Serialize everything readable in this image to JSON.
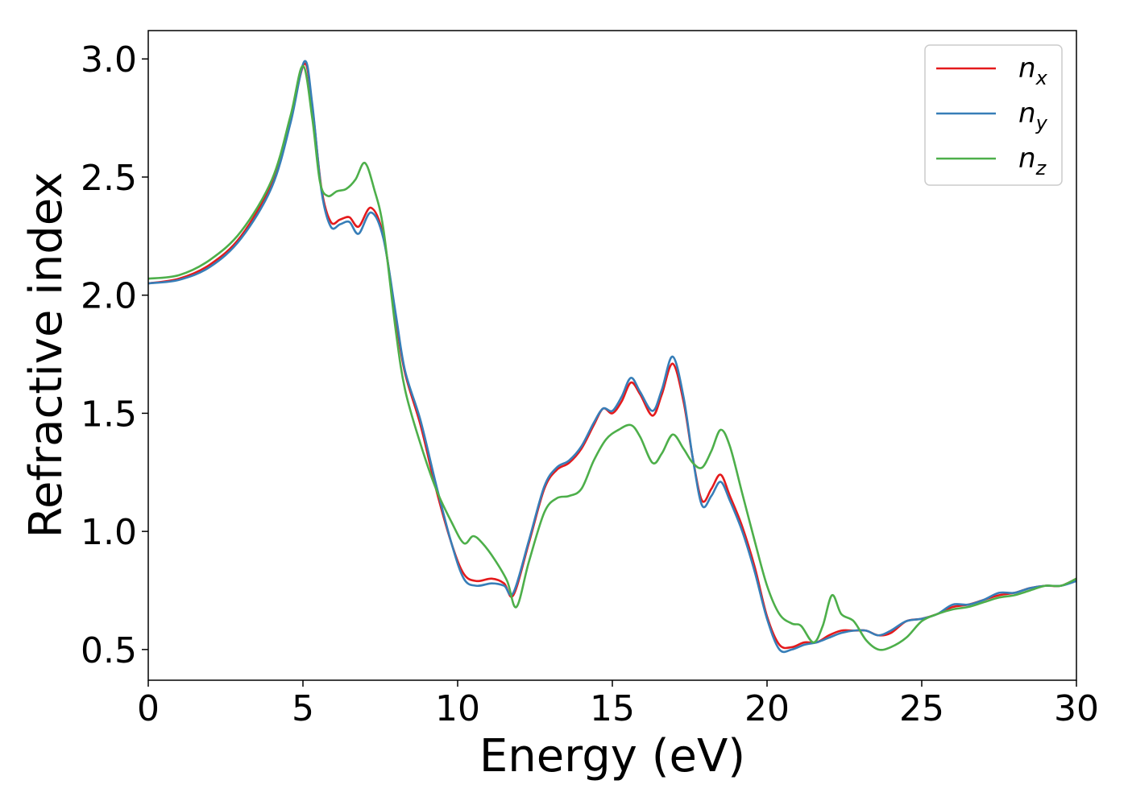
{
  "chart_data": {
    "type": "line",
    "title": "",
    "xlabel": "Energy (eV)",
    "ylabel": "Refractive index",
    "xlim": [
      0,
      30
    ],
    "ylim": [
      0.37,
      3.12
    ],
    "xticks": [
      0,
      5,
      10,
      15,
      20,
      25,
      30
    ],
    "xtick_labels": [
      "0",
      "5",
      "10",
      "15",
      "20",
      "25",
      "30"
    ],
    "yticks": [
      0.5,
      1.0,
      1.5,
      2.0,
      2.5,
      3.0
    ],
    "ytick_labels": [
      "0.5",
      "1.0",
      "1.5",
      "2.0",
      "2.5",
      "3.0"
    ],
    "grid": false,
    "legend_position": "top-right",
    "series": [
      {
        "name": "n_x",
        "label_main": "n",
        "label_sub": "x",
        "color": "#e41a1c",
        "points": [
          [
            0,
            2.05
          ],
          [
            1,
            2.07
          ],
          [
            2,
            2.13
          ],
          [
            3,
            2.25
          ],
          [
            4,
            2.48
          ],
          [
            4.6,
            2.75
          ],
          [
            5.05,
            2.98
          ],
          [
            5.3,
            2.8
          ],
          [
            5.6,
            2.45
          ],
          [
            5.9,
            2.31
          ],
          [
            6.2,
            2.32
          ],
          [
            6.5,
            2.33
          ],
          [
            6.8,
            2.29
          ],
          [
            7.2,
            2.37
          ],
          [
            7.6,
            2.25
          ],
          [
            8.0,
            1.9
          ],
          [
            8.3,
            1.67
          ],
          [
            8.8,
            1.45
          ],
          [
            9.3,
            1.18
          ],
          [
            9.8,
            0.95
          ],
          [
            10.2,
            0.82
          ],
          [
            10.6,
            0.79
          ],
          [
            11.1,
            0.8
          ],
          [
            11.5,
            0.78
          ],
          [
            11.8,
            0.73
          ],
          [
            12.3,
            0.95
          ],
          [
            12.8,
            1.18
          ],
          [
            13.2,
            1.26
          ],
          [
            13.6,
            1.29
          ],
          [
            14.0,
            1.35
          ],
          [
            14.4,
            1.45
          ],
          [
            14.7,
            1.52
          ],
          [
            15.0,
            1.5
          ],
          [
            15.3,
            1.55
          ],
          [
            15.6,
            1.63
          ],
          [
            15.9,
            1.58
          ],
          [
            16.3,
            1.49
          ],
          [
            16.6,
            1.58
          ],
          [
            16.95,
            1.71
          ],
          [
            17.3,
            1.55
          ],
          [
            17.6,
            1.31
          ],
          [
            17.9,
            1.13
          ],
          [
            18.2,
            1.18
          ],
          [
            18.5,
            1.24
          ],
          [
            18.8,
            1.15
          ],
          [
            19.2,
            1.02
          ],
          [
            19.6,
            0.85
          ],
          [
            20.0,
            0.64
          ],
          [
            20.4,
            0.52
          ],
          [
            20.8,
            0.51
          ],
          [
            21.2,
            0.53
          ],
          [
            21.6,
            0.53
          ],
          [
            22.0,
            0.56
          ],
          [
            22.4,
            0.58
          ],
          [
            22.8,
            0.58
          ],
          [
            23.2,
            0.58
          ],
          [
            23.6,
            0.56
          ],
          [
            24.0,
            0.57
          ],
          [
            24.5,
            0.62
          ],
          [
            25.0,
            0.63
          ],
          [
            25.5,
            0.65
          ],
          [
            26.0,
            0.68
          ],
          [
            26.5,
            0.69
          ],
          [
            27.0,
            0.71
          ],
          [
            27.5,
            0.73
          ],
          [
            28.0,
            0.74
          ],
          [
            28.5,
            0.76
          ],
          [
            29.0,
            0.77
          ],
          [
            29.5,
            0.77
          ],
          [
            30.0,
            0.8
          ]
        ]
      },
      {
        "name": "n_y",
        "label_main": "n",
        "label_sub": "y",
        "color": "#377eb8",
        "points": [
          [
            0,
            2.05
          ],
          [
            1,
            2.065
          ],
          [
            2,
            2.12
          ],
          [
            3,
            2.24
          ],
          [
            4,
            2.46
          ],
          [
            4.6,
            2.73
          ],
          [
            5.05,
            2.99
          ],
          [
            5.3,
            2.81
          ],
          [
            5.6,
            2.44
          ],
          [
            5.9,
            2.29
          ],
          [
            6.2,
            2.3
          ],
          [
            6.5,
            2.31
          ],
          [
            6.8,
            2.26
          ],
          [
            7.2,
            2.35
          ],
          [
            7.6,
            2.24
          ],
          [
            8.0,
            1.92
          ],
          [
            8.3,
            1.68
          ],
          [
            8.8,
            1.47
          ],
          [
            9.3,
            1.2
          ],
          [
            9.8,
            0.95
          ],
          [
            10.2,
            0.8
          ],
          [
            10.6,
            0.77
          ],
          [
            11.1,
            0.78
          ],
          [
            11.5,
            0.77
          ],
          [
            11.8,
            0.74
          ],
          [
            12.3,
            0.96
          ],
          [
            12.8,
            1.19
          ],
          [
            13.2,
            1.27
          ],
          [
            13.6,
            1.3
          ],
          [
            14.0,
            1.36
          ],
          [
            14.4,
            1.46
          ],
          [
            14.7,
            1.52
          ],
          [
            15.0,
            1.51
          ],
          [
            15.3,
            1.57
          ],
          [
            15.6,
            1.65
          ],
          [
            15.9,
            1.59
          ],
          [
            16.3,
            1.51
          ],
          [
            16.6,
            1.6
          ],
          [
            16.95,
            1.74
          ],
          [
            17.3,
            1.57
          ],
          [
            17.6,
            1.31
          ],
          [
            17.9,
            1.11
          ],
          [
            18.2,
            1.15
          ],
          [
            18.5,
            1.21
          ],
          [
            18.8,
            1.13
          ],
          [
            19.2,
            1.0
          ],
          [
            19.6,
            0.83
          ],
          [
            20.0,
            0.63
          ],
          [
            20.4,
            0.5
          ],
          [
            20.8,
            0.5
          ],
          [
            21.2,
            0.52
          ],
          [
            21.6,
            0.53
          ],
          [
            22.0,
            0.55
          ],
          [
            22.4,
            0.57
          ],
          [
            22.8,
            0.58
          ],
          [
            23.2,
            0.58
          ],
          [
            23.6,
            0.56
          ],
          [
            24.0,
            0.58
          ],
          [
            24.5,
            0.62
          ],
          [
            25.0,
            0.63
          ],
          [
            25.5,
            0.65
          ],
          [
            26.0,
            0.69
          ],
          [
            26.5,
            0.69
          ],
          [
            27.0,
            0.71
          ],
          [
            27.5,
            0.74
          ],
          [
            28.0,
            0.74
          ],
          [
            28.5,
            0.76
          ],
          [
            29.0,
            0.77
          ],
          [
            29.5,
            0.77
          ],
          [
            30.0,
            0.79
          ]
        ]
      },
      {
        "name": "n_z",
        "label_main": "n",
        "label_sub": "z",
        "color": "#4daf4a",
        "points": [
          [
            0,
            2.07
          ],
          [
            1,
            2.085
          ],
          [
            2,
            2.15
          ],
          [
            3,
            2.27
          ],
          [
            4,
            2.49
          ],
          [
            4.6,
            2.76
          ],
          [
            5.0,
            2.97
          ],
          [
            5.3,
            2.75
          ],
          [
            5.55,
            2.48
          ],
          [
            5.8,
            2.42
          ],
          [
            6.1,
            2.44
          ],
          [
            6.4,
            2.45
          ],
          [
            6.7,
            2.49
          ],
          [
            7.0,
            2.56
          ],
          [
            7.3,
            2.45
          ],
          [
            7.6,
            2.28
          ],
          [
            8.0,
            1.85
          ],
          [
            8.3,
            1.6
          ],
          [
            8.8,
            1.37
          ],
          [
            9.3,
            1.18
          ],
          [
            9.8,
            1.04
          ],
          [
            10.2,
            0.95
          ],
          [
            10.5,
            0.98
          ],
          [
            10.8,
            0.95
          ],
          [
            11.2,
            0.88
          ],
          [
            11.6,
            0.79
          ],
          [
            11.9,
            0.68
          ],
          [
            12.3,
            0.87
          ],
          [
            12.8,
            1.08
          ],
          [
            13.2,
            1.14
          ],
          [
            13.6,
            1.15
          ],
          [
            14.0,
            1.18
          ],
          [
            14.4,
            1.3
          ],
          [
            14.8,
            1.39
          ],
          [
            15.2,
            1.43
          ],
          [
            15.6,
            1.45
          ],
          [
            15.9,
            1.4
          ],
          [
            16.3,
            1.29
          ],
          [
            16.6,
            1.33
          ],
          [
            16.95,
            1.41
          ],
          [
            17.3,
            1.35
          ],
          [
            17.6,
            1.29
          ],
          [
            17.9,
            1.27
          ],
          [
            18.2,
            1.34
          ],
          [
            18.5,
            1.43
          ],
          [
            18.8,
            1.36
          ],
          [
            19.2,
            1.16
          ],
          [
            19.6,
            0.96
          ],
          [
            20.0,
            0.77
          ],
          [
            20.4,
            0.65
          ],
          [
            20.8,
            0.61
          ],
          [
            21.1,
            0.6
          ],
          [
            21.5,
            0.53
          ],
          [
            21.8,
            0.6
          ],
          [
            22.1,
            0.73
          ],
          [
            22.4,
            0.65
          ],
          [
            22.8,
            0.62
          ],
          [
            23.2,
            0.54
          ],
          [
            23.6,
            0.5
          ],
          [
            24.0,
            0.51
          ],
          [
            24.5,
            0.55
          ],
          [
            25.0,
            0.62
          ],
          [
            25.5,
            0.65
          ],
          [
            26.0,
            0.67
          ],
          [
            26.5,
            0.68
          ],
          [
            27.0,
            0.7
          ],
          [
            27.5,
            0.72
          ],
          [
            28.0,
            0.73
          ],
          [
            28.5,
            0.75
          ],
          [
            29.0,
            0.77
          ],
          [
            29.5,
            0.77
          ],
          [
            30.0,
            0.8
          ]
        ]
      }
    ]
  }
}
